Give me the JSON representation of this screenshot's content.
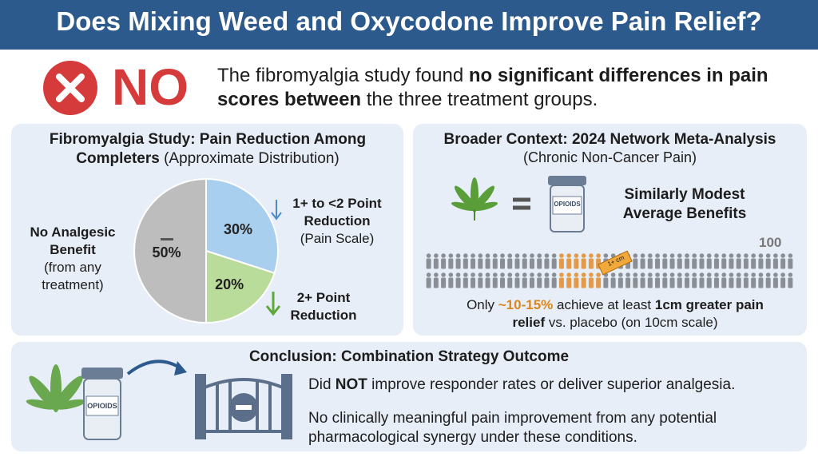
{
  "header": {
    "title": "Does Mixing Weed and Oxycodone Improve Pain Relief?"
  },
  "verdict": {
    "badge": "NO",
    "text_start": "The fibromyalgia study found ",
    "text_bold": "no significant differences in pain scores between",
    "text_end": " the three treatment groups."
  },
  "study": {
    "title_bold": "Fibromyalgia Study: Pain Reduction Among Completers",
    "title_note": " (Approximate Distribution)",
    "pie": {
      "type": "pie",
      "slices": [
        {
          "label": "1+ to <2 Point Reduction",
          "note": "(Pain Scale)",
          "value": 30,
          "value_label": "30%",
          "color": "#a9cfee"
        },
        {
          "label": "2+ Point Reduction",
          "value": 20,
          "value_label": "20%",
          "color": "#b9dc9a"
        },
        {
          "label": "No Analgesic Benefit",
          "note": "(from any treatment)",
          "value": 50,
          "value_label": "50%",
          "color": "#bdbdbd"
        }
      ]
    }
  },
  "meta": {
    "title": "Broader Context: 2024 Network Meta-Analysis",
    "subtitle": "(Chronic Non-Cancer Pain)",
    "bottle_label": "OPIOIDS",
    "comparison": "Similarly Modest Average Benefits",
    "population": 100,
    "tag": "1+ cm",
    "text_start": "Only ",
    "text_share": "~10-15%",
    "text_mid": " achieve at least ",
    "text_bold": "1cm greater pain relief",
    "text_end": " vs. placebo (on 10cm scale)"
  },
  "conclusion": {
    "title": "Conclusion: Combination Strategy Outcome",
    "bottle_label": "OPIOIDS",
    "line1_start": "Did ",
    "line1_bold": "NOT",
    "line1_end": " improve responder rates or deliver superior analgesia.",
    "line2": "No clinically meaningful pain improvement from any potential pharmacological synergy under these conditions."
  }
}
